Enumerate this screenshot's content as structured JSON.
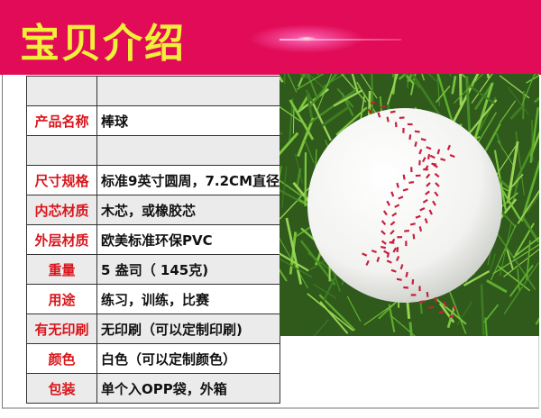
{
  "header": {
    "title": "宝贝介绍",
    "background": "#e10b57",
    "title_color": "#f1ef3a"
  },
  "specs": [
    {
      "label": "",
      "value": ""
    },
    {
      "label": "产品名称",
      "value": "棒球"
    },
    {
      "label": "",
      "value": ""
    },
    {
      "label": "尺寸规格",
      "value": "标准9英寸圆周，7.2CM直径"
    },
    {
      "label": "内芯材质",
      "value": "木芯，或橡胶芯"
    },
    {
      "label": "外层材质",
      "value": "欧美标准环保PVC"
    },
    {
      "label": "重量",
      "value": " 5 盎司（ 145克)"
    },
    {
      "label": "用途",
      "value": " 练习，训练，比赛"
    },
    {
      "label": "有无印刷",
      "value": "无印刷（可以定制印刷)"
    },
    {
      "label": "颜色",
      "value": "白色（可以定制颜色）"
    },
    {
      "label": "包装",
      "value": "单个入OPP袋，外箱"
    }
  ],
  "label_color": "#d9161c",
  "photo": {
    "subject": "baseball-on-grass"
  }
}
